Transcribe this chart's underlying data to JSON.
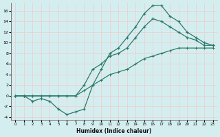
{
  "xlabel": "Humidex (Indice chaleur)",
  "bg_color": "#d4eef0",
  "grid_color": "#c0dde0",
  "line_color": "#2a7a6a",
  "xlim": [
    -0.5,
    23.5
  ],
  "ylim": [
    -4.5,
    17.5
  ],
  "xticks": [
    0,
    1,
    2,
    3,
    4,
    5,
    6,
    7,
    8,
    9,
    10,
    11,
    12,
    13,
    14,
    15,
    16,
    17,
    18,
    19,
    20,
    21,
    22,
    23
  ],
  "yticks": [
    -4,
    -2,
    0,
    2,
    4,
    6,
    8,
    10,
    12,
    14,
    16
  ],
  "line1_x": [
    0,
    1,
    2,
    3,
    4,
    5,
    6,
    7,
    8,
    9,
    10,
    11,
    12,
    13,
    14,
    15,
    16,
    17,
    18,
    19,
    20,
    21,
    22,
    23
  ],
  "line1_y": [
    0,
    0,
    -1,
    -0.5,
    -1,
    -2.5,
    -3.5,
    -3,
    -2.5,
    2,
    5,
    8,
    9,
    11,
    13,
    15.5,
    17,
    17,
    15,
    14,
    12,
    11,
    10,
    9.5
  ],
  "line2_x": [
    0,
    1,
    2,
    3,
    4,
    5,
    6,
    7,
    8,
    9,
    10,
    11,
    12,
    13,
    14,
    15,
    16,
    17,
    18,
    19,
    20,
    21,
    22,
    23
  ],
  "line2_y": [
    0,
    0,
    0,
    0,
    0,
    0,
    0,
    0,
    2,
    5,
    6,
    7.5,
    8,
    9,
    11,
    13,
    14.5,
    14,
    13,
    12,
    11,
    10.5,
    9.5,
    9.5
  ],
  "line3_x": [
    0,
    1,
    2,
    3,
    4,
    5,
    6,
    7,
    8,
    9,
    10,
    11,
    12,
    13,
    14,
    15,
    16,
    17,
    18,
    19,
    20,
    21,
    22,
    23
  ],
  "line3_y": [
    0,
    0,
    0,
    0,
    0,
    0,
    0,
    0,
    1,
    2,
    3,
    4,
    4.5,
    5,
    6,
    7,
    7.5,
    8,
    8.5,
    9,
    9,
    9,
    9,
    9
  ]
}
